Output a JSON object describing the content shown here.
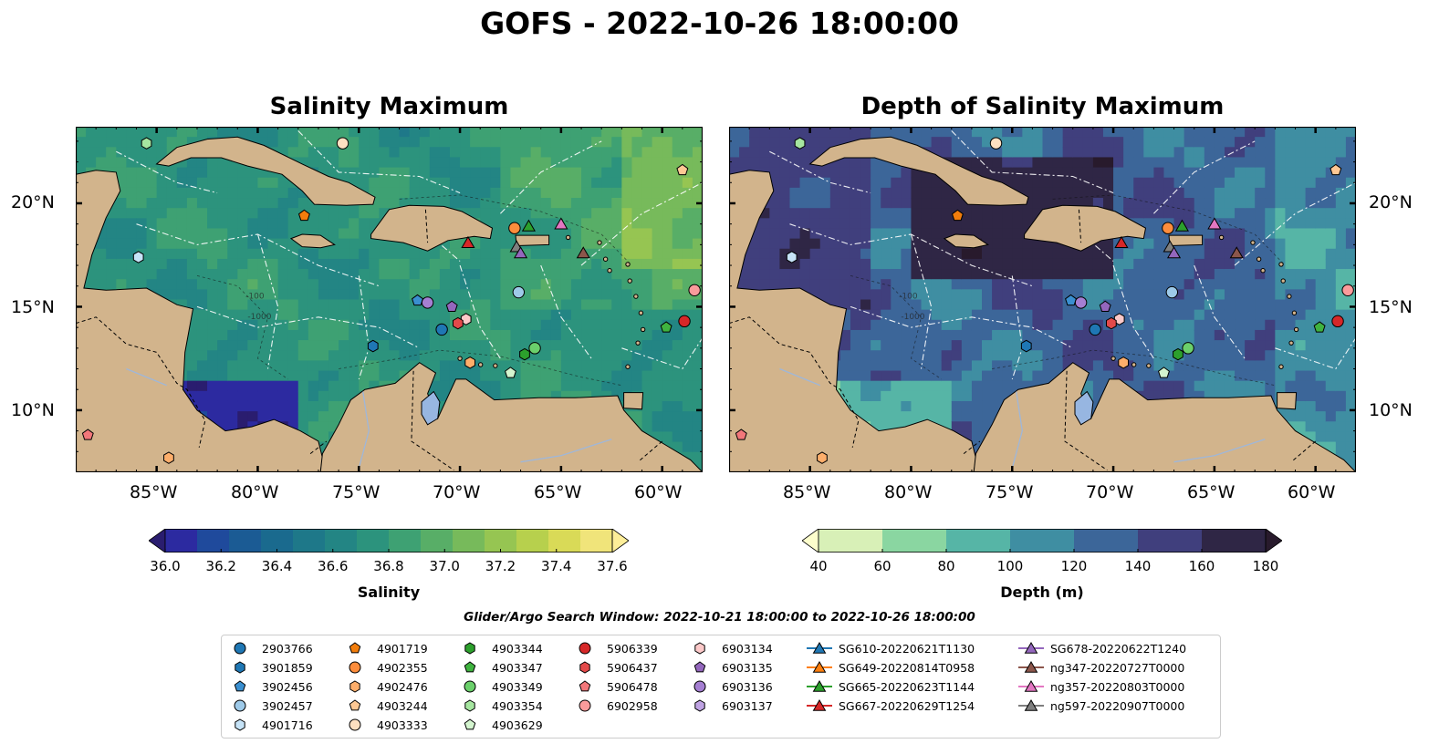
{
  "title": "GOFS - 2022-10-26 18:00:00",
  "panels": [
    {
      "title": "Salinity Maximum",
      "colormap": "haline"
    },
    {
      "title": "Depth of Salinity Maximum",
      "colormap": "deep"
    }
  ],
  "map": {
    "lon_ticks": [
      "85°W",
      "80°W",
      "75°W",
      "70°W",
      "65°W",
      "60°W"
    ],
    "lat_ticks": [
      "20°N",
      "15°N",
      "10°N"
    ],
    "land_color": "#d2b48c",
    "contour_labels": [
      "-100",
      "-1000"
    ]
  },
  "colorbars": [
    {
      "label": "Salinity",
      "ticks": [
        "36.0",
        "36.2",
        "36.4",
        "36.6",
        "36.8",
        "37.0",
        "37.2",
        "37.4",
        "37.6"
      ],
      "colors": [
        "#2a1d6f",
        "#2c2aa0",
        "#1f4a9c",
        "#1b5b94",
        "#1a6a8e",
        "#1e7889",
        "#238584",
        "#2c937d",
        "#3ea173",
        "#58ae67",
        "#77ba5b",
        "#96c552",
        "#b7d04d",
        "#d9da57",
        "#f0e47a",
        "#fdee99"
      ]
    },
    {
      "label": "Depth (m)",
      "ticks": [
        "40",
        "60",
        "80",
        "100",
        "120",
        "140",
        "160",
        "180"
      ],
      "colors": [
        "#fdfecc",
        "#d8f0b7",
        "#8ad6a1",
        "#56b5a6",
        "#3f8ea2",
        "#3c6699",
        "#403f7d",
        "#2f2645",
        "#281a2c"
      ]
    }
  ],
  "search_window": "Glider/Argo Search Window: 2022-10-21 18:00:00 to 2022-10-26 18:00:00",
  "legend": [
    {
      "label": "2903766",
      "marker": "circle",
      "color": "#1f77b4"
    },
    {
      "label": "3901859",
      "marker": "hexagon",
      "color": "#1f77b4"
    },
    {
      "label": "3902456",
      "marker": "pentagon",
      "color": "#3a8fd0"
    },
    {
      "label": "3902457",
      "marker": "circle",
      "color": "#9ecae9"
    },
    {
      "label": "4901716",
      "marker": "hexagon",
      "color": "#c6e3f7"
    },
    {
      "label": "4901719",
      "marker": "pentagon",
      "color": "#f27d0c"
    },
    {
      "label": "4902355",
      "marker": "circle",
      "color": "#fd8d3c"
    },
    {
      "label": "4902476",
      "marker": "hexagon",
      "color": "#fdae6b"
    },
    {
      "label": "4903244",
      "marker": "pentagon",
      "color": "#fdc894"
    },
    {
      "label": "4903333",
      "marker": "circle",
      "color": "#fde0c1"
    },
    {
      "label": "4903344",
      "marker": "hexagon",
      "color": "#2ca02c"
    },
    {
      "label": "4903347",
      "marker": "pentagon",
      "color": "#3fb33f"
    },
    {
      "label": "4903349",
      "marker": "circle",
      "color": "#6bd06b"
    },
    {
      "label": "4903354",
      "marker": "hexagon",
      "color": "#a6e6a0"
    },
    {
      "label": "4903629",
      "marker": "pentagon",
      "color": "#d4f5cf"
    },
    {
      "label": "5906339",
      "marker": "circle",
      "color": "#d62728"
    },
    {
      "label": "5906437",
      "marker": "hexagon",
      "color": "#e34a4a"
    },
    {
      "label": "5906478",
      "marker": "pentagon",
      "color": "#f2777a"
    },
    {
      "label": "6902958",
      "marker": "circle",
      "color": "#fa9b9b"
    },
    {
      "label": "6903134",
      "marker": "hexagon",
      "color": "#fcc9c9"
    },
    {
      "label": "6903135",
      "marker": "pentagon",
      "color": "#9467bd"
    },
    {
      "label": "6903136",
      "marker": "circle",
      "color": "#a57fd2"
    },
    {
      "label": "6903137",
      "marker": "hexagon",
      "color": "#bfa3e3"
    },
    {
      "label": "SG610-20220621T1130",
      "marker": "triangle",
      "color": "#1f77b4"
    },
    {
      "label": "SG649-20220814T0958",
      "marker": "triangle",
      "color": "#ff7f0e"
    },
    {
      "label": "SG665-20220623T1144",
      "marker": "triangle",
      "color": "#2ca02c"
    },
    {
      "label": "SG667-20220629T1254",
      "marker": "triangle",
      "color": "#d62728"
    },
    {
      "label": "SG678-20220622T1240",
      "marker": "triangle",
      "color": "#9467bd"
    },
    {
      "label": "ng347-20220727T0000",
      "marker": "triangle",
      "color": "#8c564b"
    },
    {
      "label": "ng357-20220803T0000",
      "marker": "triangle",
      "color": "#e377c2"
    },
    {
      "label": "ng597-20220907T0000",
      "marker": "triangle",
      "color": "#7f7f7f"
    }
  ],
  "markers": [
    {
      "label": "4903354",
      "lon": -85.5,
      "lat": 22.9,
      "marker": "hexagon",
      "color": "#a6e6a0"
    },
    {
      "label": "4903333",
      "lon": -75.8,
      "lat": 22.9,
      "marker": "circle",
      "color": "#fde0c1"
    },
    {
      "label": "4903244",
      "lon": -59.0,
      "lat": 21.6,
      "marker": "pentagon",
      "color": "#fdc894"
    },
    {
      "label": "4901719",
      "lon": -77.7,
      "lat": 19.4,
      "marker": "pentagon",
      "color": "#f27d0c"
    },
    {
      "label": "4902355",
      "lon": -67.3,
      "lat": 18.8,
      "marker": "circle",
      "color": "#fd8d3c"
    },
    {
      "label": "SG665-20220623T1144",
      "lon": -66.6,
      "lat": 18.9,
      "marker": "triangle",
      "color": "#2ca02c"
    },
    {
      "label": "ng357-20220803T0000",
      "lon": -65.0,
      "lat": 19.0,
      "marker": "triangle",
      "color": "#e377c2"
    },
    {
      "label": "SG667-20220629T1254",
      "lon": -69.6,
      "lat": 18.1,
      "marker": "triangle",
      "color": "#d62728"
    },
    {
      "label": "ng597-20220907T0000",
      "lon": -67.2,
      "lat": 17.9,
      "marker": "triangle",
      "color": "#7f7f7f"
    },
    {
      "label": "SG678-20220622T1240",
      "lon": -67.0,
      "lat": 17.6,
      "marker": "triangle",
      "color": "#9467bd"
    },
    {
      "label": "ng347-20220727T0000",
      "lon": -63.9,
      "lat": 17.6,
      "marker": "triangle",
      "color": "#8c564b"
    },
    {
      "label": "4901716",
      "lon": -85.9,
      "lat": 17.4,
      "marker": "hexagon",
      "color": "#c6e3f7"
    },
    {
      "label": "3902457",
      "lon": -67.1,
      "lat": 15.7,
      "marker": "circle",
      "color": "#9ecae9"
    },
    {
      "label": "6902958",
      "lon": -58.4,
      "lat": 15.8,
      "marker": "circle",
      "color": "#fa9b9b"
    },
    {
      "label": "3902456",
      "lon": -72.1,
      "lat": 15.3,
      "marker": "pentagon",
      "color": "#3a8fd0"
    },
    {
      "label": "6903136",
      "lon": -71.6,
      "lat": 15.2,
      "marker": "circle",
      "color": "#a57fd2"
    },
    {
      "label": "6903135",
      "lon": -70.4,
      "lat": 15.0,
      "marker": "pentagon",
      "color": "#9467bd"
    },
    {
      "label": "6903134",
      "lon": -69.7,
      "lat": 14.4,
      "marker": "hexagon",
      "color": "#fcc9c9"
    },
    {
      "label": "5906437",
      "lon": -70.1,
      "lat": 14.2,
      "marker": "hexagon",
      "color": "#e34a4a"
    },
    {
      "label": "5906339",
      "lon": -58.9,
      "lat": 14.3,
      "marker": "circle",
      "color": "#d62728"
    },
    {
      "label": "4903347",
      "lon": -59.8,
      "lat": 14.0,
      "marker": "pentagon",
      "color": "#3fb33f"
    },
    {
      "label": "2903766",
      "lon": -70.9,
      "lat": 13.9,
      "marker": "circle",
      "color": "#1f77b4"
    },
    {
      "label": "3901859",
      "lon": -74.3,
      "lat": 13.1,
      "marker": "hexagon",
      "color": "#1f77b4"
    },
    {
      "label": "4903349",
      "lon": -66.3,
      "lat": 13.0,
      "marker": "circle",
      "color": "#6bd06b"
    },
    {
      "label": "4903344",
      "lon": -66.8,
      "lat": 12.7,
      "marker": "hexagon",
      "color": "#2ca02c"
    },
    {
      "label": "4902476",
      "lon": -69.5,
      "lat": 12.3,
      "marker": "hexagon",
      "color": "#fdae6b"
    },
    {
      "label": "4903629",
      "lon": -67.5,
      "lat": 11.8,
      "marker": "pentagon",
      "color": "#d4f5cf"
    },
    {
      "label": "5906478",
      "lon": -88.4,
      "lat": 8.8,
      "marker": "pentagon",
      "color": "#f2777a"
    },
    {
      "label": "4902476",
      "lon": -84.4,
      "lat": 7.7,
      "marker": "hexagon",
      "color": "#fdae6b"
    }
  ]
}
